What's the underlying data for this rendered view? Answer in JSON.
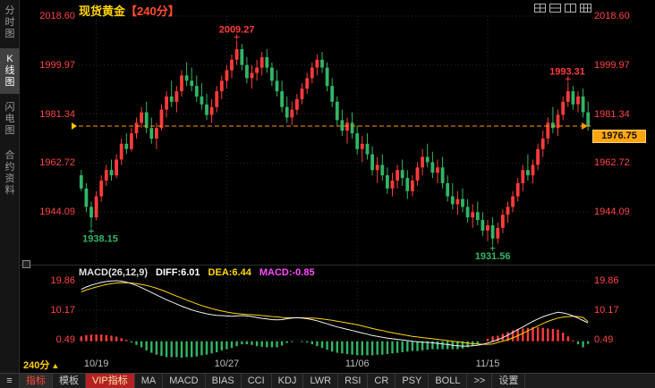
{
  "header": {
    "symbol": "现货黄金",
    "period": "【240分】"
  },
  "sidebar": {
    "items": [
      {
        "key": "time-chart",
        "label": "分时图",
        "active": false
      },
      {
        "key": "kline-chart",
        "label": "K线图",
        "active": true
      },
      {
        "key": "flash-chart",
        "label": "闪电图",
        "active": false
      },
      {
        "key": "contract-info",
        "label": "合约资料",
        "active": false
      }
    ]
  },
  "layout_icons": [
    {
      "key": "layout-grid-2x2"
    },
    {
      "key": "layout-split-horizontal"
    },
    {
      "key": "layout-split-vertical"
    },
    {
      "key": "layout-grid-3x3"
    }
  ],
  "colors": {
    "up": "#ff3b3b",
    "down": "#31b565",
    "axis": "#ff4444",
    "current": "#ff9800",
    "diff": "#f2f2f2",
    "dea": "#ffd700",
    "macd_value": "#ff4dff"
  },
  "chart_data": {
    "type": "candlestick",
    "symbol": "现货黄金",
    "period": "240分",
    "current_price": "1976.75",
    "y_ticks": [
      "2018.60",
      "1999.97",
      "1981.34",
      "1962.72",
      "1944.09"
    ],
    "x_ticks": [
      {
        "label": "10/19",
        "index": 3
      },
      {
        "label": "10/27",
        "index": 29
      },
      {
        "label": "11/06",
        "index": 55
      },
      {
        "label": "11/15",
        "index": 81
      }
    ],
    "annotations": [
      {
        "text": "2009.27",
        "index": 31,
        "pos": "above",
        "color": "up"
      },
      {
        "text": "1993.31",
        "index": 97,
        "pos": "above",
        "color": "up"
      },
      {
        "text": "1938.15",
        "index": 2,
        "pos": "below",
        "color": "down"
      },
      {
        "text": "1931.56",
        "index": 82,
        "pos": "below",
        "color": "down"
      }
    ],
    "candles": [
      [
        1958,
        1960,
        1952,
        1953
      ],
      [
        1953,
        1955,
        1944,
        1946
      ],
      [
        1946,
        1948,
        1938.15,
        1942
      ],
      [
        1942,
        1952,
        1941,
        1950
      ],
      [
        1950,
        1958,
        1948,
        1956
      ],
      [
        1956,
        1962,
        1954,
        1960
      ],
      [
        1960,
        1964,
        1956,
        1958
      ],
      [
        1958,
        1966,
        1957,
        1964
      ],
      [
        1964,
        1972,
        1962,
        1970
      ],
      [
        1970,
        1974,
        1966,
        1968
      ],
      [
        1968,
        1976,
        1967,
        1974
      ],
      [
        1974,
        1980,
        1972,
        1978
      ],
      [
        1978,
        1984,
        1976,
        1982
      ],
      [
        1982,
        1986,
        1974,
        1976
      ],
      [
        1976,
        1980,
        1970,
        1972
      ],
      [
        1972,
        1978,
        1968,
        1976
      ],
      [
        1976,
        1985,
        1975,
        1983
      ],
      [
        1983,
        1990,
        1980,
        1988
      ],
      [
        1988,
        1994,
        1984,
        1986
      ],
      [
        1986,
        1992,
        1982,
        1990
      ],
      [
        1990,
        1998,
        1988,
        1996
      ],
      [
        1996,
        2001,
        1992,
        1994
      ],
      [
        1994,
        1999,
        1990,
        1992
      ],
      [
        1992,
        1996,
        1986,
        1988
      ],
      [
        1988,
        1993,
        1983,
        1985
      ],
      [
        1985,
        1989,
        1979,
        1981
      ],
      [
        1981,
        1987,
        1978,
        1984
      ],
      [
        1984,
        1992,
        1982,
        1990
      ],
      [
        1990,
        1996,
        1987,
        1994
      ],
      [
        1994,
        2000,
        1991,
        1998
      ],
      [
        1998,
        2004,
        1995,
        2002
      ],
      [
        2002,
        2009.27,
        2000,
        2006
      ],
      [
        2006,
        2008,
        1998,
        2000
      ],
      [
        2000,
        2003,
        1993,
        1995
      ],
      [
        1995,
        2000,
        1991,
        1997
      ],
      [
        1997,
        2002,
        1994,
        1999
      ],
      [
        1999,
        2005,
        1996,
        2003
      ],
      [
        2003,
        2006,
        1997,
        1999
      ],
      [
        1999,
        2001,
        1992,
        1994
      ],
      [
        1994,
        1998,
        1988,
        1990
      ],
      [
        1990,
        1994,
        1982,
        1984
      ],
      [
        1984,
        1988,
        1978,
        1980
      ],
      [
        1980,
        1986,
        1977,
        1983
      ],
      [
        1983,
        1989,
        1981,
        1987
      ],
      [
        1987,
        1993,
        1985,
        1991
      ],
      [
        1991,
        1997,
        1989,
        1995
      ],
      [
        1995,
        2001,
        1993,
        1999
      ],
      [
        1999,
        2004,
        1996,
        2002
      ],
      [
        2002,
        2005,
        1997,
        1999
      ],
      [
        1999,
        2001,
        1990,
        1992
      ],
      [
        1992,
        1995,
        1984,
        1986
      ],
      [
        1986,
        1988,
        1977,
        1979
      ],
      [
        1979,
        1983,
        1973,
        1975
      ],
      [
        1975,
        1980,
        1970,
        1978
      ],
      [
        1978,
        1982,
        1972,
        1974
      ],
      [
        1974,
        1977,
        1966,
        1968
      ],
      [
        1968,
        1973,
        1963,
        1970
      ],
      [
        1970,
        1974,
        1964,
        1966
      ],
      [
        1966,
        1969,
        1958,
        1960
      ],
      [
        1960,
        1965,
        1955,
        1962
      ],
      [
        1962,
        1966,
        1956,
        1958
      ],
      [
        1958,
        1961,
        1951,
        1953
      ],
      [
        1953,
        1959,
        1950,
        1956
      ],
      [
        1956,
        1962,
        1953,
        1960
      ],
      [
        1960,
        1964,
        1954,
        1957
      ],
      [
        1957,
        1960,
        1949,
        1952
      ],
      [
        1952,
        1958,
        1950,
        1956
      ],
      [
        1956,
        1963,
        1954,
        1961
      ],
      [
        1961,
        1968,
        1958,
        1965
      ],
      [
        1965,
        1970,
        1961,
        1963
      ],
      [
        1963,
        1967,
        1957,
        1959
      ],
      [
        1959,
        1964,
        1955,
        1961
      ],
      [
        1961,
        1965,
        1953,
        1955
      ],
      [
        1955,
        1958,
        1948,
        1950
      ],
      [
        1950,
        1955,
        1945,
        1947
      ],
      [
        1947,
        1952,
        1943,
        1949
      ],
      [
        1949,
        1953,
        1944,
        1946
      ],
      [
        1946,
        1949,
        1940,
        1942
      ],
      [
        1942,
        1947,
        1938,
        1944
      ],
      [
        1944,
        1948,
        1939,
        1941
      ],
      [
        1941,
        1944,
        1935,
        1937
      ],
      [
        1937,
        1941,
        1933,
        1939
      ],
      [
        1939,
        1942,
        1931.56,
        1934
      ],
      [
        1934,
        1940,
        1932,
        1938
      ],
      [
        1938,
        1945,
        1936,
        1943
      ],
      [
        1943,
        1948,
        1940,
        1946
      ],
      [
        1946,
        1952,
        1944,
        1950
      ],
      [
        1950,
        1957,
        1948,
        1955
      ],
      [
        1955,
        1962,
        1952,
        1960
      ],
      [
        1960,
        1966,
        1956,
        1958
      ],
      [
        1958,
        1964,
        1955,
        1962
      ],
      [
        1962,
        1970,
        1960,
        1968
      ],
      [
        1968,
        1975,
        1965,
        1972
      ],
      [
        1972,
        1980,
        1970,
        1978
      ],
      [
        1978,
        1984,
        1974,
        1976
      ],
      [
        1976,
        1983,
        1973,
        1981
      ],
      [
        1981,
        1988,
        1979,
        1986
      ],
      [
        1986,
        1993.31,
        1984,
        1990
      ],
      [
        1990,
        1992,
        1983,
        1985
      ],
      [
        1985,
        1990,
        1982,
        1988
      ],
      [
        1988,
        1991,
        1980,
        1982
      ],
      [
        1982,
        1986,
        1975,
        1976.75
      ]
    ],
    "macd": {
      "label": "MACD(26,12,9)",
      "diff_label": "DIFF:6.01",
      "dea_label": "DEA:6.44",
      "macd_label": "MACD:-0.85",
      "y_ticks": [
        "19.86",
        "10.17",
        "0.49"
      ],
      "diff": [
        17.0,
        17.8,
        18.4,
        18.9,
        19.3,
        19.6,
        19.8,
        19.86,
        19.7,
        19.4,
        18.9,
        18.3,
        17.6,
        16.8,
        16.0,
        15.2,
        14.4,
        13.6,
        12.9,
        12.2,
        11.5,
        10.9,
        10.3,
        9.8,
        9.4,
        9.0,
        8.7,
        8.5,
        8.4,
        8.3,
        8.2,
        8.3,
        8.4,
        8.3,
        8.1,
        7.8,
        7.5,
        7.3,
        7.1,
        7.0,
        7.1,
        7.4,
        7.6,
        7.7,
        7.6,
        7.4,
        7.1,
        6.7,
        6.2,
        5.7,
        5.2,
        4.7,
        4.3,
        3.9,
        3.5,
        3.1,
        2.7,
        2.3,
        1.9,
        1.6,
        1.3,
        1.0,
        0.8,
        0.6,
        0.4,
        0.2,
        0.0,
        -0.2,
        -0.3,
        -0.4,
        -0.5,
        -0.7,
        -0.9,
        -1.1,
        -1.3,
        -1.5,
        -1.6,
        -1.6,
        -1.5,
        -1.3,
        -1.0,
        -0.6,
        -0.1,
        0.5,
        1.2,
        2.0,
        2.9,
        3.8,
        4.7,
        5.6,
        6.5,
        7.3,
        8.0,
        8.6,
        9.1,
        9.5,
        9.3,
        8.9,
        8.3,
        7.6,
        6.8,
        6.01
      ],
      "dea": [
        16.2,
        16.8,
        17.3,
        17.8,
        18.2,
        18.6,
        18.9,
        19.1,
        19.2,
        19.2,
        19.1,
        18.9,
        18.6,
        18.3,
        17.9,
        17.4,
        16.8,
        16.2,
        15.5,
        14.8,
        14.2,
        13.5,
        12.9,
        12.3,
        11.7,
        11.2,
        10.7,
        10.3,
        9.9,
        9.6,
        9.3,
        9.1,
        8.9,
        8.8,
        8.7,
        8.6,
        8.4,
        8.3,
        8.1,
        8.0,
        7.8,
        7.7,
        7.7,
        7.7,
        7.7,
        7.6,
        7.6,
        7.5,
        7.3,
        7.1,
        6.9,
        6.6,
        6.3,
        6.0,
        5.7,
        5.4,
        5.0,
        4.6,
        4.2,
        3.8,
        3.5,
        3.1,
        2.8,
        2.5,
        2.2,
        1.9,
        1.6,
        1.4,
        1.2,
        1.0,
        0.8,
        0.6,
        0.4,
        0.2,
        0.0,
        -0.2,
        -0.4,
        -0.6,
        -0.8,
        -0.9,
        -1.0,
        -1.0,
        -0.9,
        -0.4,
        0.0,
        0.5,
        1.1,
        1.8,
        2.6,
        3.4,
        4.2,
        5.0,
        5.8,
        6.5,
        7.1,
        7.6,
        7.9,
        8.1,
        8.2,
        8.1,
        7.8,
        6.44
      ]
    }
  },
  "footer": {
    "period": "240分"
  },
  "toolbar": {
    "items": [
      {
        "key": "indicator",
        "label": "指标",
        "style": "active"
      },
      {
        "key": "template",
        "label": "模板"
      },
      {
        "key": "vip-indicator",
        "label": "VIP指标",
        "style": "vip"
      },
      {
        "key": "ma",
        "label": "MA"
      },
      {
        "key": "macd",
        "label": "MACD"
      },
      {
        "key": "bias",
        "label": "BIAS"
      },
      {
        "key": "cci",
        "label": "CCI"
      },
      {
        "key": "kdj",
        "label": "KDJ"
      },
      {
        "key": "lwr",
        "label": "LWR"
      },
      {
        "key": "rsi",
        "label": "RSI"
      },
      {
        "key": "cr",
        "label": "CR"
      },
      {
        "key": "psy",
        "label": "PSY"
      },
      {
        "key": "boll",
        "label": "BOLL"
      },
      {
        "key": "more",
        "label": ">>"
      },
      {
        "key": "settings",
        "label": "设置"
      }
    ]
  }
}
